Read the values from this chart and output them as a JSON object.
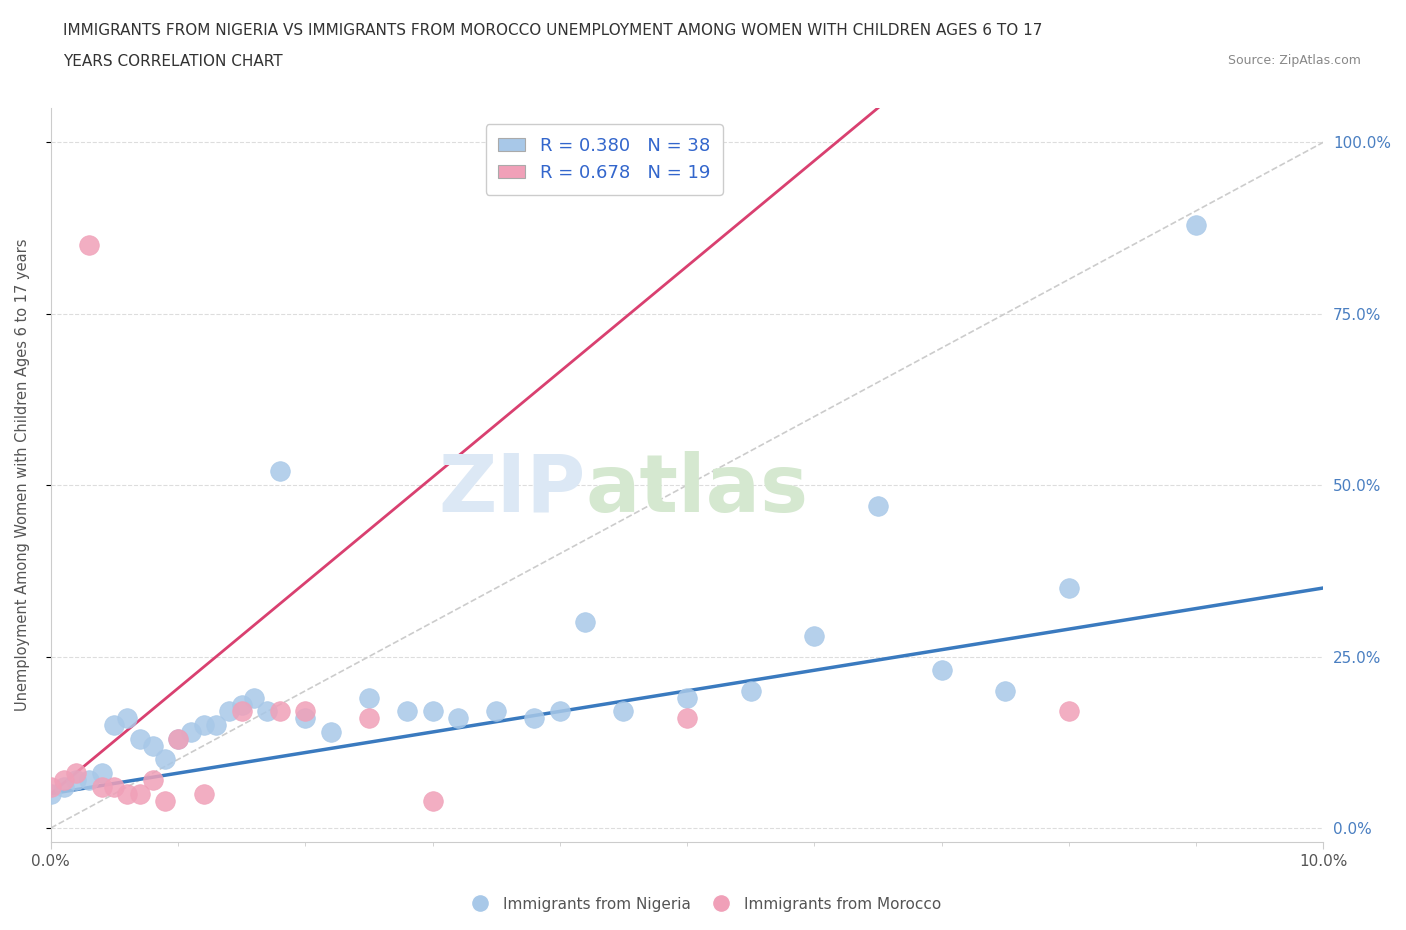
{
  "title_line1": "IMMIGRANTS FROM NIGERIA VS IMMIGRANTS FROM MOROCCO UNEMPLOYMENT AMONG WOMEN WITH CHILDREN AGES 6 TO 17",
  "title_line2": "YEARS CORRELATION CHART",
  "source": "Source: ZipAtlas.com",
  "ylabel": "Unemployment Among Women with Children Ages 6 to 17 years",
  "xlim": [
    0.0,
    0.1
  ],
  "ylim": [
    -0.02,
    1.05
  ],
  "ytick_values": [
    0.0,
    0.25,
    0.5,
    0.75,
    1.0
  ],
  "ytick_labels": [
    "0.0%",
    "25.0%",
    "50.0%",
    "75.0%",
    "100.0%"
  ],
  "xtick_values": [
    0.0,
    0.1
  ],
  "xtick_labels": [
    "0.0%",
    "10.0%"
  ],
  "nigeria_color": "#a8c8e8",
  "morocco_color": "#f0a0b8",
  "nigeria_R": 0.38,
  "nigeria_N": 38,
  "morocco_R": 0.678,
  "morocco_N": 19,
  "trend_nigeria_color": "#3a7abf",
  "trend_morocco_color": "#d94070",
  "diag_color": "#cccccc",
  "background_color": "#ffffff",
  "grid_color": "#dddddd",
  "nigeria_x": [
    0.0,
    0.001,
    0.002,
    0.003,
    0.004,
    0.005,
    0.006,
    0.007,
    0.008,
    0.009,
    0.01,
    0.011,
    0.012,
    0.013,
    0.014,
    0.015,
    0.016,
    0.017,
    0.018,
    0.02,
    0.022,
    0.025,
    0.028,
    0.03,
    0.032,
    0.035,
    0.038,
    0.04,
    0.042,
    0.045,
    0.05,
    0.055,
    0.06,
    0.065,
    0.07,
    0.075,
    0.08,
    0.09
  ],
  "nigeria_y": [
    0.05,
    0.06,
    0.07,
    0.07,
    0.08,
    0.15,
    0.16,
    0.13,
    0.12,
    0.1,
    0.13,
    0.14,
    0.15,
    0.15,
    0.17,
    0.18,
    0.19,
    0.17,
    0.52,
    0.16,
    0.14,
    0.19,
    0.17,
    0.17,
    0.16,
    0.17,
    0.16,
    0.17,
    0.3,
    0.17,
    0.19,
    0.2,
    0.28,
    0.47,
    0.23,
    0.2,
    0.35,
    0.88
  ],
  "morocco_x": [
    0.0,
    0.001,
    0.002,
    0.003,
    0.004,
    0.005,
    0.006,
    0.007,
    0.008,
    0.009,
    0.01,
    0.012,
    0.015,
    0.018,
    0.02,
    0.025,
    0.03,
    0.05,
    0.08
  ],
  "morocco_y": [
    0.06,
    0.07,
    0.08,
    0.85,
    0.06,
    0.06,
    0.05,
    0.05,
    0.07,
    0.04,
    0.13,
    0.05,
    0.17,
    0.17,
    0.17,
    0.16,
    0.04,
    0.16,
    0.17
  ],
  "nigeria_trend_x0": 0.0,
  "nigeria_trend_x1": 0.1,
  "nigeria_trend_y0": 0.05,
  "nigeria_trend_y1": 0.35,
  "morocco_trend_x0": 0.0,
  "morocco_trend_x1": 0.065,
  "morocco_trend_y0": 0.05,
  "morocco_trend_y1": 1.05
}
